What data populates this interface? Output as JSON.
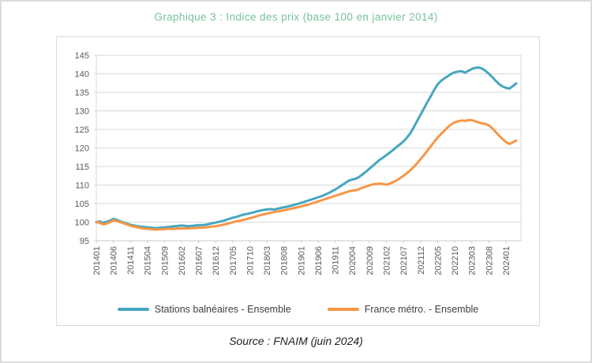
{
  "title": "Graphique 3 : Indice des prix (base 100 en janvier 2014)",
  "source": "Source : FNAIM (juin 2024)",
  "colors": {
    "title_green": "#76c29b",
    "series_seaside": "#45a6c0",
    "series_france": "#f79646",
    "gridline": "#d9d9d9",
    "axis_label": "#595959",
    "legend_text": "#3f3f3f"
  },
  "legend": {
    "items": [
      {
        "label": "Stations balnéaires - Ensemble",
        "color": "#45a6c0"
      },
      {
        "label": "France métro. - Ensemble",
        "color": "#f79646"
      }
    ]
  },
  "chart_data": {
    "type": "line",
    "title": "Graphique 3 : Indice des prix (base 100 en janvier 2014)",
    "xlabel": "",
    "ylabel": "",
    "ylim": [
      95,
      145
    ],
    "yticks": [
      95,
      100,
      105,
      110,
      115,
      120,
      125,
      130,
      135,
      140,
      145
    ],
    "grid": true,
    "legend_position": "bottom",
    "x_start_month": "201401",
    "x_end_month": "202404",
    "x_tick_every_months": 5,
    "x_tick_labels": [
      "201401",
      "201406",
      "201411",
      "201504",
      "201509",
      "201602",
      "201607",
      "201612",
      "201705",
      "201710",
      "201803",
      "201808",
      "201901",
      "201906",
      "201911",
      "202004",
      "202009",
      "202102",
      "202107",
      "202112",
      "202205",
      "202210",
      "202303",
      "202308",
      "202401"
    ],
    "series": [
      {
        "name": "Stations balnéaires - Ensemble",
        "color": "#45a6c0",
        "values": [
          100.0,
          100.2,
          99.8,
          100.1,
          100.4,
          100.9,
          100.6,
          100.2,
          99.9,
          99.6,
          99.3,
          99.1,
          98.9,
          98.8,
          98.7,
          98.6,
          98.5,
          98.4,
          98.4,
          98.5,
          98.6,
          98.7,
          98.8,
          98.9,
          99.0,
          99.1,
          99.0,
          98.9,
          99.0,
          99.1,
          99.2,
          99.2,
          99.3,
          99.5,
          99.7,
          99.9,
          100.1,
          100.3,
          100.6,
          100.9,
          101.2,
          101.4,
          101.7,
          102.0,
          102.2,
          102.4,
          102.6,
          102.9,
          103.1,
          103.3,
          103.4,
          103.5,
          103.4,
          103.6,
          103.8,
          104.0,
          104.2,
          104.4,
          104.7,
          104.9,
          105.2,
          105.5,
          105.8,
          106.1,
          106.4,
          106.7,
          107.0,
          107.4,
          107.8,
          108.3,
          108.8,
          109.4,
          110.0,
          110.6,
          111.2,
          111.5,
          111.7,
          112.2,
          112.9,
          113.6,
          114.4,
          115.2,
          116.0,
          116.8,
          117.4,
          118.1,
          118.8,
          119.5,
          120.3,
          121.0,
          121.8,
          122.8,
          124.0,
          125.6,
          127.3,
          129.0,
          130.7,
          132.4,
          134.0,
          135.7,
          137.2,
          138.1,
          138.8,
          139.4,
          140.0,
          140.4,
          140.6,
          140.7,
          140.3,
          140.8,
          141.3,
          141.6,
          141.7,
          141.4,
          140.8,
          140.0,
          139.1,
          138.1,
          137.2,
          136.6,
          136.2,
          136.0,
          136.7,
          137.4
        ]
      },
      {
        "name": "France métro. - Ensemble",
        "color": "#f79646",
        "values": [
          100.0,
          99.8,
          99.4,
          99.6,
          100.0,
          100.5,
          100.3,
          100.0,
          99.7,
          99.4,
          99.0,
          98.8,
          98.6,
          98.4,
          98.3,
          98.2,
          98.1,
          98.0,
          98.0,
          98.1,
          98.1,
          98.2,
          98.2,
          98.2,
          98.3,
          98.3,
          98.3,
          98.3,
          98.4,
          98.4,
          98.5,
          98.5,
          98.6,
          98.7,
          98.8,
          98.9,
          99.1,
          99.3,
          99.5,
          99.7,
          100.0,
          100.2,
          100.4,
          100.6,
          100.8,
          101.1,
          101.3,
          101.6,
          101.9,
          102.1,
          102.3,
          102.5,
          102.7,
          102.9,
          103.0,
          103.2,
          103.4,
          103.6,
          103.8,
          104.0,
          104.2,
          104.5,
          104.7,
          105.0,
          105.3,
          105.6,
          105.9,
          106.2,
          106.5,
          106.8,
          107.1,
          107.4,
          107.7,
          108.0,
          108.3,
          108.5,
          108.6,
          108.9,
          109.3,
          109.6,
          109.9,
          110.2,
          110.3,
          110.4,
          110.3,
          110.1,
          110.4,
          110.8,
          111.3,
          111.9,
          112.5,
          113.2,
          114.0,
          114.9,
          115.9,
          117.0,
          118.1,
          119.3,
          120.5,
          121.7,
          122.8,
          123.8,
          124.7,
          125.6,
          126.4,
          126.9,
          127.2,
          127.4,
          127.3,
          127.5,
          127.5,
          127.2,
          126.9,
          126.6,
          126.5,
          126.1,
          125.3,
          124.3,
          123.3,
          122.4,
          121.6,
          121.1,
          121.5,
          122.0
        ]
      }
    ]
  }
}
